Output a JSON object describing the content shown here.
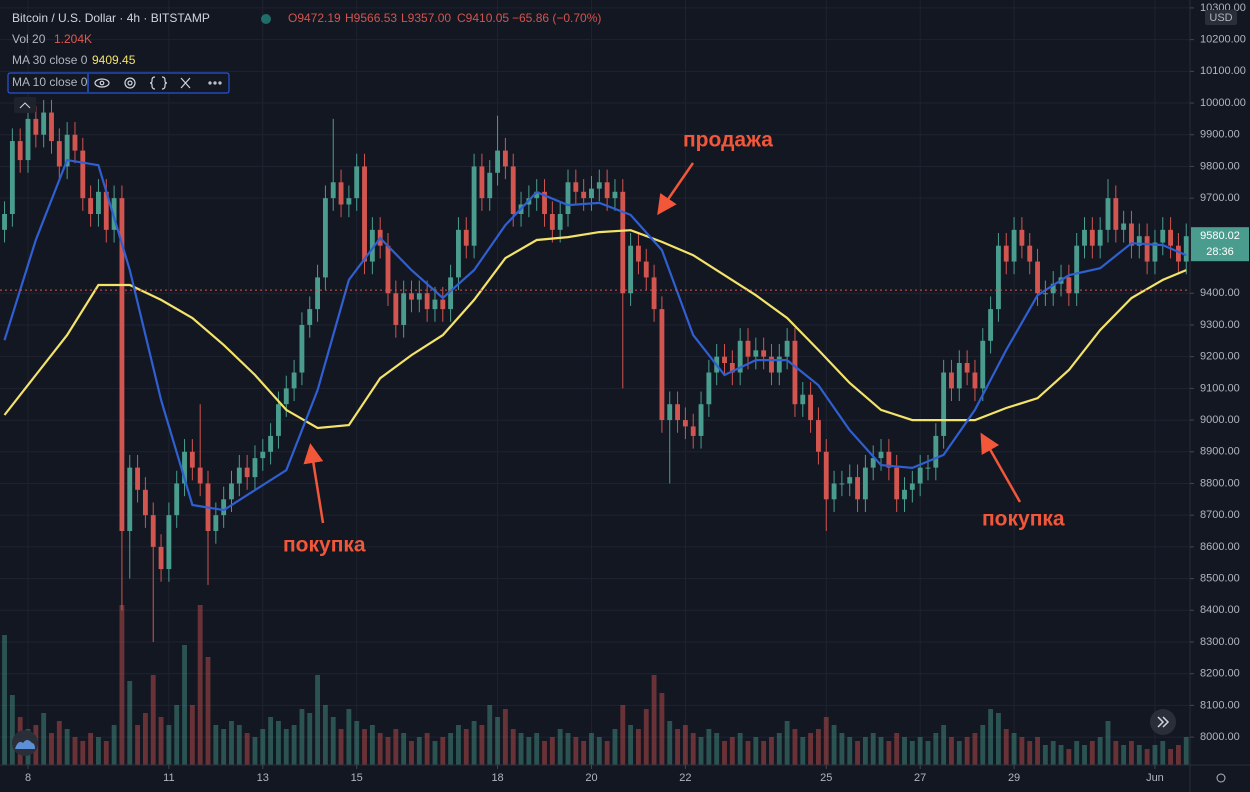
{
  "chart_data": {
    "type": "candlestick",
    "title": "Bitcoin / U.S. Dollar · 4h · BITSTAMP",
    "ohlc": {
      "open": {
        "value": 9472.19,
        "label": "O9472.19"
      },
      "high": {
        "value": 9566.53,
        "label": "H9566.53"
      },
      "low": {
        "value": 9357.0,
        "label": "L9357.00"
      },
      "close": {
        "value": 9410.05,
        "label": "C9410.05"
      },
      "change": "−65.86 (−0.70%)"
    },
    "volume_legend": {
      "name": "Vol 20",
      "value": 1204,
      "label": "1.204K"
    },
    "up_color": "#4a9d8e",
    "down_color": "#d2554f",
    "open": [
      9600,
      9650,
      9880,
      9820,
      9950,
      9900,
      9970,
      9880,
      9800,
      9900,
      9850,
      9700,
      9650,
      9720,
      9600,
      9700,
      8650,
      8850,
      8780,
      8700,
      8600,
      8530,
      8700,
      8800,
      8900,
      8850,
      8800,
      8650,
      8700,
      8750,
      8800,
      8850,
      8820,
      8880,
      8900,
      8950,
      9050,
      9100,
      9150,
      9300,
      9350,
      9450,
      9700,
      9750,
      9680,
      9700,
      9800,
      9500,
      9600,
      9550,
      9400,
      9300,
      9400,
      9380,
      9400,
      9350,
      9380,
      9350,
      9450,
      9600,
      9550,
      9800,
      9700,
      9780,
      9850,
      9800,
      9650,
      9680,
      9700,
      9720,
      9650,
      9600,
      9650,
      9750,
      9720,
      9700,
      9730,
      9750,
      9700,
      9720,
      9400,
      9550,
      9500,
      9450,
      9350,
      9000,
      9050,
      9000,
      8980,
      8950,
      9050,
      9150,
      9200,
      9180,
      9150,
      9250,
      9200,
      9220,
      9200,
      9150,
      9200,
      9250,
      9050,
      9080,
      9000,
      8900,
      8750,
      8800,
      8800,
      8820,
      8750,
      8850,
      8880,
      8900,
      8850,
      8750,
      8780,
      8800,
      8850,
      8850,
      8950,
      9150,
      9100,
      9180,
      9150,
      9100,
      9250,
      9350,
      9550,
      9500,
      9600,
      9550,
      9500,
      9400,
      9400,
      9430,
      9450,
      9400,
      9550,
      9600,
      9550,
      9600,
      9700,
      9600,
      9620,
      9550,
      9580,
      9500,
      9560,
      9600,
      9550,
      9500
    ],
    "high": [
      9690,
      9920,
      9920,
      9990,
      9990,
      10010,
      10010,
      9920,
      9940,
      9940,
      9890,
      9740,
      9760,
      9760,
      9740,
      9740,
      8890,
      8890,
      8820,
      8740,
      8640,
      8740,
      8840,
      8940,
      8940,
      9050,
      8840,
      8740,
      8790,
      8840,
      8890,
      8890,
      8920,
      8940,
      8990,
      9090,
      9140,
      9190,
      9340,
      9390,
      9490,
      9740,
      9950,
      9790,
      9740,
      9840,
      9840,
      9640,
      9640,
      9590,
      9440,
      9440,
      9440,
      9440,
      9440,
      9420,
      9420,
      9490,
      9640,
      9640,
      9840,
      9840,
      9820,
      9960,
      9890,
      9840,
      9720,
      9740,
      9760,
      9760,
      9690,
      9690,
      9790,
      9790,
      9760,
      9770,
      9790,
      9790,
      9760,
      9760,
      9590,
      9590,
      9540,
      9490,
      9390,
      9090,
      9090,
      9040,
      9020,
      9090,
      9190,
      9240,
      9240,
      9220,
      9290,
      9290,
      9260,
      9260,
      9240,
      9240,
      9290,
      9290,
      9120,
      9120,
      9040,
      8940,
      8840,
      8840,
      8860,
      8860,
      8890,
      8920,
      8940,
      8940,
      8890,
      8820,
      8840,
      8890,
      8890,
      8990,
      9190,
      9190,
      9220,
      9220,
      9190,
      9290,
      9390,
      9590,
      9590,
      9640,
      9640,
      9590,
      9540,
      9440,
      9470,
      9490,
      9490,
      9590,
      9640,
      9640,
      9640,
      9760,
      9740,
      9660,
      9660,
      9620,
      9620,
      9600,
      9640,
      9640,
      9590,
      9620
    ],
    "low": [
      9560,
      9610,
      9780,
      9780,
      9860,
      9860,
      9840,
      9760,
      9760,
      9810,
      9660,
      9610,
      9610,
      9560,
      9560,
      8400,
      8500,
      8740,
      8660,
      8300,
      8490,
      8490,
      8660,
      8760,
      8810,
      8760,
      8480,
      8610,
      8660,
      8710,
      8760,
      8780,
      8780,
      8840,
      8860,
      8910,
      9010,
      9060,
      9110,
      9260,
      9310,
      9410,
      9660,
      9640,
      9640,
      9660,
      9460,
      9460,
      9510,
      9360,
      9260,
      9260,
      9340,
      9340,
      9310,
      9310,
      9310,
      9310,
      9410,
      9510,
      9510,
      9660,
      9660,
      9740,
      9760,
      9610,
      9610,
      9640,
      9660,
      9610,
      9560,
      9560,
      9610,
      9680,
      9660,
      9660,
      9690,
      9660,
      9660,
      9100,
      9360,
      9460,
      9410,
      9310,
      8960,
      8800,
      8960,
      8940,
      8910,
      8910,
      9010,
      9110,
      9140,
      9110,
      9110,
      9160,
      9160,
      9160,
      9110,
      9110,
      9160,
      9010,
      9010,
      8960,
      8860,
      8650,
      8710,
      8760,
      8760,
      8710,
      8710,
      8810,
      8840,
      8810,
      8710,
      8710,
      8740,
      8760,
      8810,
      8810,
      8910,
      9060,
      9060,
      9110,
      9060,
      9060,
      9210,
      9310,
      9460,
      9460,
      9510,
      9460,
      9360,
      9360,
      9360,
      9390,
      9360,
      9360,
      9510,
      9510,
      9510,
      9560,
      9560,
      9560,
      9510,
      9510,
      9460,
      9460,
      9520,
      9510,
      9460,
      9460
    ],
    "close": [
      9650,
      9880,
      9820,
      9950,
      9900,
      9970,
      9880,
      9800,
      9900,
      9850,
      9700,
      9650,
      9720,
      9600,
      9700,
      8650,
      8850,
      8780,
      8700,
      8600,
      8530,
      8700,
      8800,
      8900,
      8850,
      8800,
      8650,
      8700,
      8750,
      8800,
      8850,
      8820,
      8880,
      8900,
      8950,
      9050,
      9100,
      9150,
      9300,
      9350,
      9450,
      9700,
      9750,
      9680,
      9700,
      9800,
      9500,
      9600,
      9550,
      9400,
      9300,
      9400,
      9380,
      9400,
      9350,
      9380,
      9350,
      9450,
      9600,
      9550,
      9800,
      9700,
      9780,
      9850,
      9800,
      9650,
      9680,
      9700,
      9720,
      9650,
      9600,
      9650,
      9750,
      9720,
      9700,
      9730,
      9750,
      9700,
      9720,
      9400,
      9550,
      9500,
      9450,
      9350,
      9000,
      9050,
      9000,
      8980,
      8950,
      9050,
      9150,
      9200,
      9180,
      9150,
      9250,
      9200,
      9220,
      9200,
      9150,
      9200,
      9250,
      9050,
      9080,
      9000,
      8900,
      8750,
      8800,
      8800,
      8820,
      8750,
      8850,
      8880,
      8900,
      8850,
      8750,
      8780,
      8800,
      8850,
      8850,
      8950,
      9150,
      9100,
      9180,
      9150,
      9100,
      9250,
      9350,
      9550,
      9500,
      9600,
      9550,
      9500,
      9400,
      9400,
      9430,
      9450,
      9400,
      9550,
      9600,
      9550,
      9600,
      9700,
      9600,
      9620,
      9550,
      9580,
      9500,
      9560,
      9600,
      9550,
      9500,
      9580.02
    ],
    "volume": [
      3250,
      1750,
      1200,
      900,
      1000,
      1300,
      800,
      1100,
      900,
      700,
      600,
      800,
      700,
      600,
      1000,
      4000,
      2100,
      1000,
      1300,
      2250,
      1200,
      1000,
      1500,
      3000,
      1500,
      4000,
      2700,
      1000,
      900,
      1100,
      1000,
      800,
      700,
      900,
      1200,
      1100,
      900,
      1000,
      1400,
      1300,
      2250,
      1500,
      1200,
      900,
      1400,
      1100,
      900,
      1000,
      800,
      700,
      900,
      800,
      600,
      700,
      800,
      600,
      700,
      800,
      1000,
      900,
      1100,
      1000,
      1500,
      1200,
      1400,
      900,
      800,
      700,
      800,
      600,
      700,
      900,
      800,
      700,
      600,
      800,
      700,
      600,
      900,
      1500,
      1000,
      900,
      1400,
      2250,
      1800,
      1100,
      900,
      1000,
      800,
      700,
      900,
      800,
      600,
      700,
      800,
      600,
      700,
      600,
      700,
      800,
      1100,
      900,
      700,
      800,
      900,
      1200,
      1000,
      800,
      700,
      600,
      700,
      800,
      700,
      600,
      800,
      700,
      600,
      700,
      600,
      800,
      1000,
      700,
      600,
      700,
      800,
      1000,
      1400,
      1300,
      900,
      800,
      700,
      600,
      700,
      500,
      600,
      500,
      400,
      600,
      500,
      600,
      700,
      1100,
      600,
      500,
      600,
      500,
      400,
      500,
      600,
      400,
      500,
      700
    ],
    "vlim": [
      0,
      5000
    ],
    "series": [
      {
        "name": "MA 30 close 0",
        "value": 9409.45,
        "color": "#f3e36a",
        "x": [
          0,
          4,
          8,
          12,
          16,
          20,
          24,
          28,
          32,
          36,
          40,
          44,
          48,
          52,
          56,
          60,
          64,
          68,
          72,
          76,
          80,
          84,
          88,
          92,
          96,
          100,
          104,
          108,
          112,
          116,
          120,
          124,
          128,
          132,
          136,
          140,
          144,
          148,
          151
        ],
        "values": [
          9016,
          9142,
          9268,
          9426,
          9426,
          9379,
          9322,
          9237,
          9142,
          9032,
          8975,
          8984,
          9132,
          9205,
          9268,
          9379,
          9511,
          9568,
          9577,
          9593,
          9599,
          9562,
          9520,
          9457,
          9394,
          9322,
          9221,
          9117,
          9032,
          9000,
          9000,
          9000,
          9038,
          9069,
          9158,
          9284,
          9385,
          9442,
          9473
        ]
      },
      {
        "name": "MA 10 close 0",
        "color": "#2f5fd0",
        "x": [
          0,
          4,
          8,
          12,
          16,
          20,
          24,
          28,
          32,
          36,
          40,
          44,
          48,
          52,
          56,
          60,
          64,
          68,
          72,
          76,
          80,
          84,
          88,
          92,
          96,
          100,
          104,
          108,
          112,
          116,
          120,
          124,
          128,
          132,
          136,
          140,
          144,
          148,
          151
        ],
        "values": [
          9252,
          9568,
          9820,
          9804,
          9473,
          9063,
          8732,
          8716,
          8779,
          8842,
          9095,
          9442,
          9574,
          9473,
          9385,
          9473,
          9615,
          9719,
          9678,
          9685,
          9647,
          9536,
          9268,
          9142,
          9189,
          9189,
          9110,
          8968,
          8858,
          8849,
          8890,
          9032,
          9221,
          9394,
          9457,
          9479,
          9558,
          9552,
          9520
        ]
      }
    ],
    "last_price": {
      "value": 9580.02,
      "label": "9580.02"
    },
    "countdown": "28:36",
    "currency": "USD",
    "annotations": [
      "продажа",
      "покупка",
      "покупка"
    ],
    "xlim": [
      -0.58,
      151.48
    ],
    "xticks": [
      {
        "value": 3,
        "label": "8"
      },
      {
        "value": 21,
        "label": "11"
      },
      {
        "value": 33,
        "label": "13"
      },
      {
        "value": 45,
        "label": "15"
      },
      {
        "value": 63,
        "label": "18"
      },
      {
        "value": 75,
        "label": "20"
      },
      {
        "value": 87,
        "label": "22"
      },
      {
        "value": 105,
        "label": "25"
      },
      {
        "value": 117,
        "label": "27"
      },
      {
        "value": 129,
        "label": "29"
      },
      {
        "value": 147,
        "label": "Jun"
      }
    ],
    "ylim": [
      7912,
      10325
    ],
    "yticks": [
      {
        "value": 8000,
        "label": "8000.00"
      },
      {
        "value": 8100,
        "label": "8100.00"
      },
      {
        "value": 8200,
        "label": "8200.00"
      },
      {
        "value": 8300,
        "label": "8300.00"
      },
      {
        "value": 8400,
        "label": "8400.00"
      },
      {
        "value": 8500,
        "label": "8500.00"
      },
      {
        "value": 8600,
        "label": "8600.00"
      },
      {
        "value": 8700,
        "label": "8700.00"
      },
      {
        "value": 8800,
        "label": "8800.00"
      },
      {
        "value": 8900,
        "label": "8900.00"
      },
      {
        "value": 9000,
        "label": "9000.00"
      },
      {
        "value": 9100,
        "label": "9100.00"
      },
      {
        "value": 9200,
        "label": "9200.00"
      },
      {
        "value": 9300,
        "label": "9300.00"
      },
      {
        "value": 9400,
        "label": "9400.00"
      },
      {
        "value": 9700,
        "label": "9700.00"
      },
      {
        "value": 9800,
        "label": "9800.00"
      },
      {
        "value": 9900,
        "label": "9900.00"
      },
      {
        "value": 10000,
        "label": "10000.00"
      },
      {
        "value": 10100,
        "label": "10100.00"
      },
      {
        "value": 10200,
        "label": "10200.00"
      },
      {
        "value": 10300,
        "label": "10300.00"
      }
    ],
    "grid": true
  }
}
